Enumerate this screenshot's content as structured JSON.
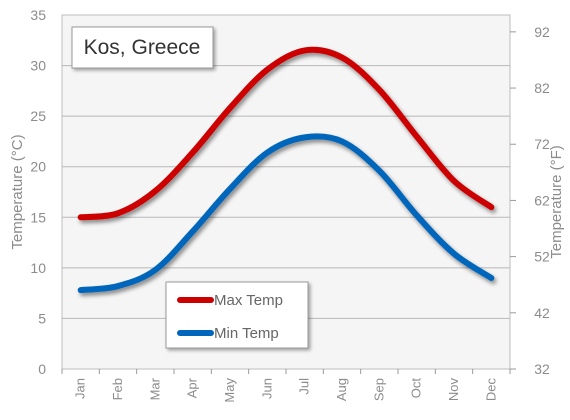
{
  "chart_data": {
    "type": "line",
    "title": "Kos, Greece",
    "categories": [
      "Jan",
      "Feb",
      "Mar",
      "Apr",
      "May",
      "Jun",
      "Jul",
      "Aug",
      "Sep",
      "Oct",
      "Nov",
      "Dec"
    ],
    "ylabel_left": "Temperature (°C)",
    "ylabel_right": "Temperature (°F)",
    "ylim": [
      0,
      35
    ],
    "y_ticks_left": [
      0,
      5,
      10,
      15,
      20,
      25,
      30,
      35
    ],
    "y_ticks_right": [
      "32",
      "42",
      "52",
      "62",
      "72",
      "82",
      "92"
    ],
    "grid": true,
    "legend_placement": "bottom-center",
    "series": [
      {
        "name": "Max Temp",
        "color": "#cc0000",
        "values": [
          15.0,
          15.4,
          17.6,
          21.4,
          25.8,
          29.6,
          31.5,
          30.8,
          27.6,
          23.0,
          18.6,
          16.0
        ]
      },
      {
        "name": "Min Temp",
        "color": "#0066bb",
        "values": [
          7.8,
          8.2,
          9.8,
          13.6,
          17.8,
          21.4,
          22.9,
          22.5,
          19.6,
          15.2,
          11.4,
          9.0
        ]
      }
    ]
  }
}
